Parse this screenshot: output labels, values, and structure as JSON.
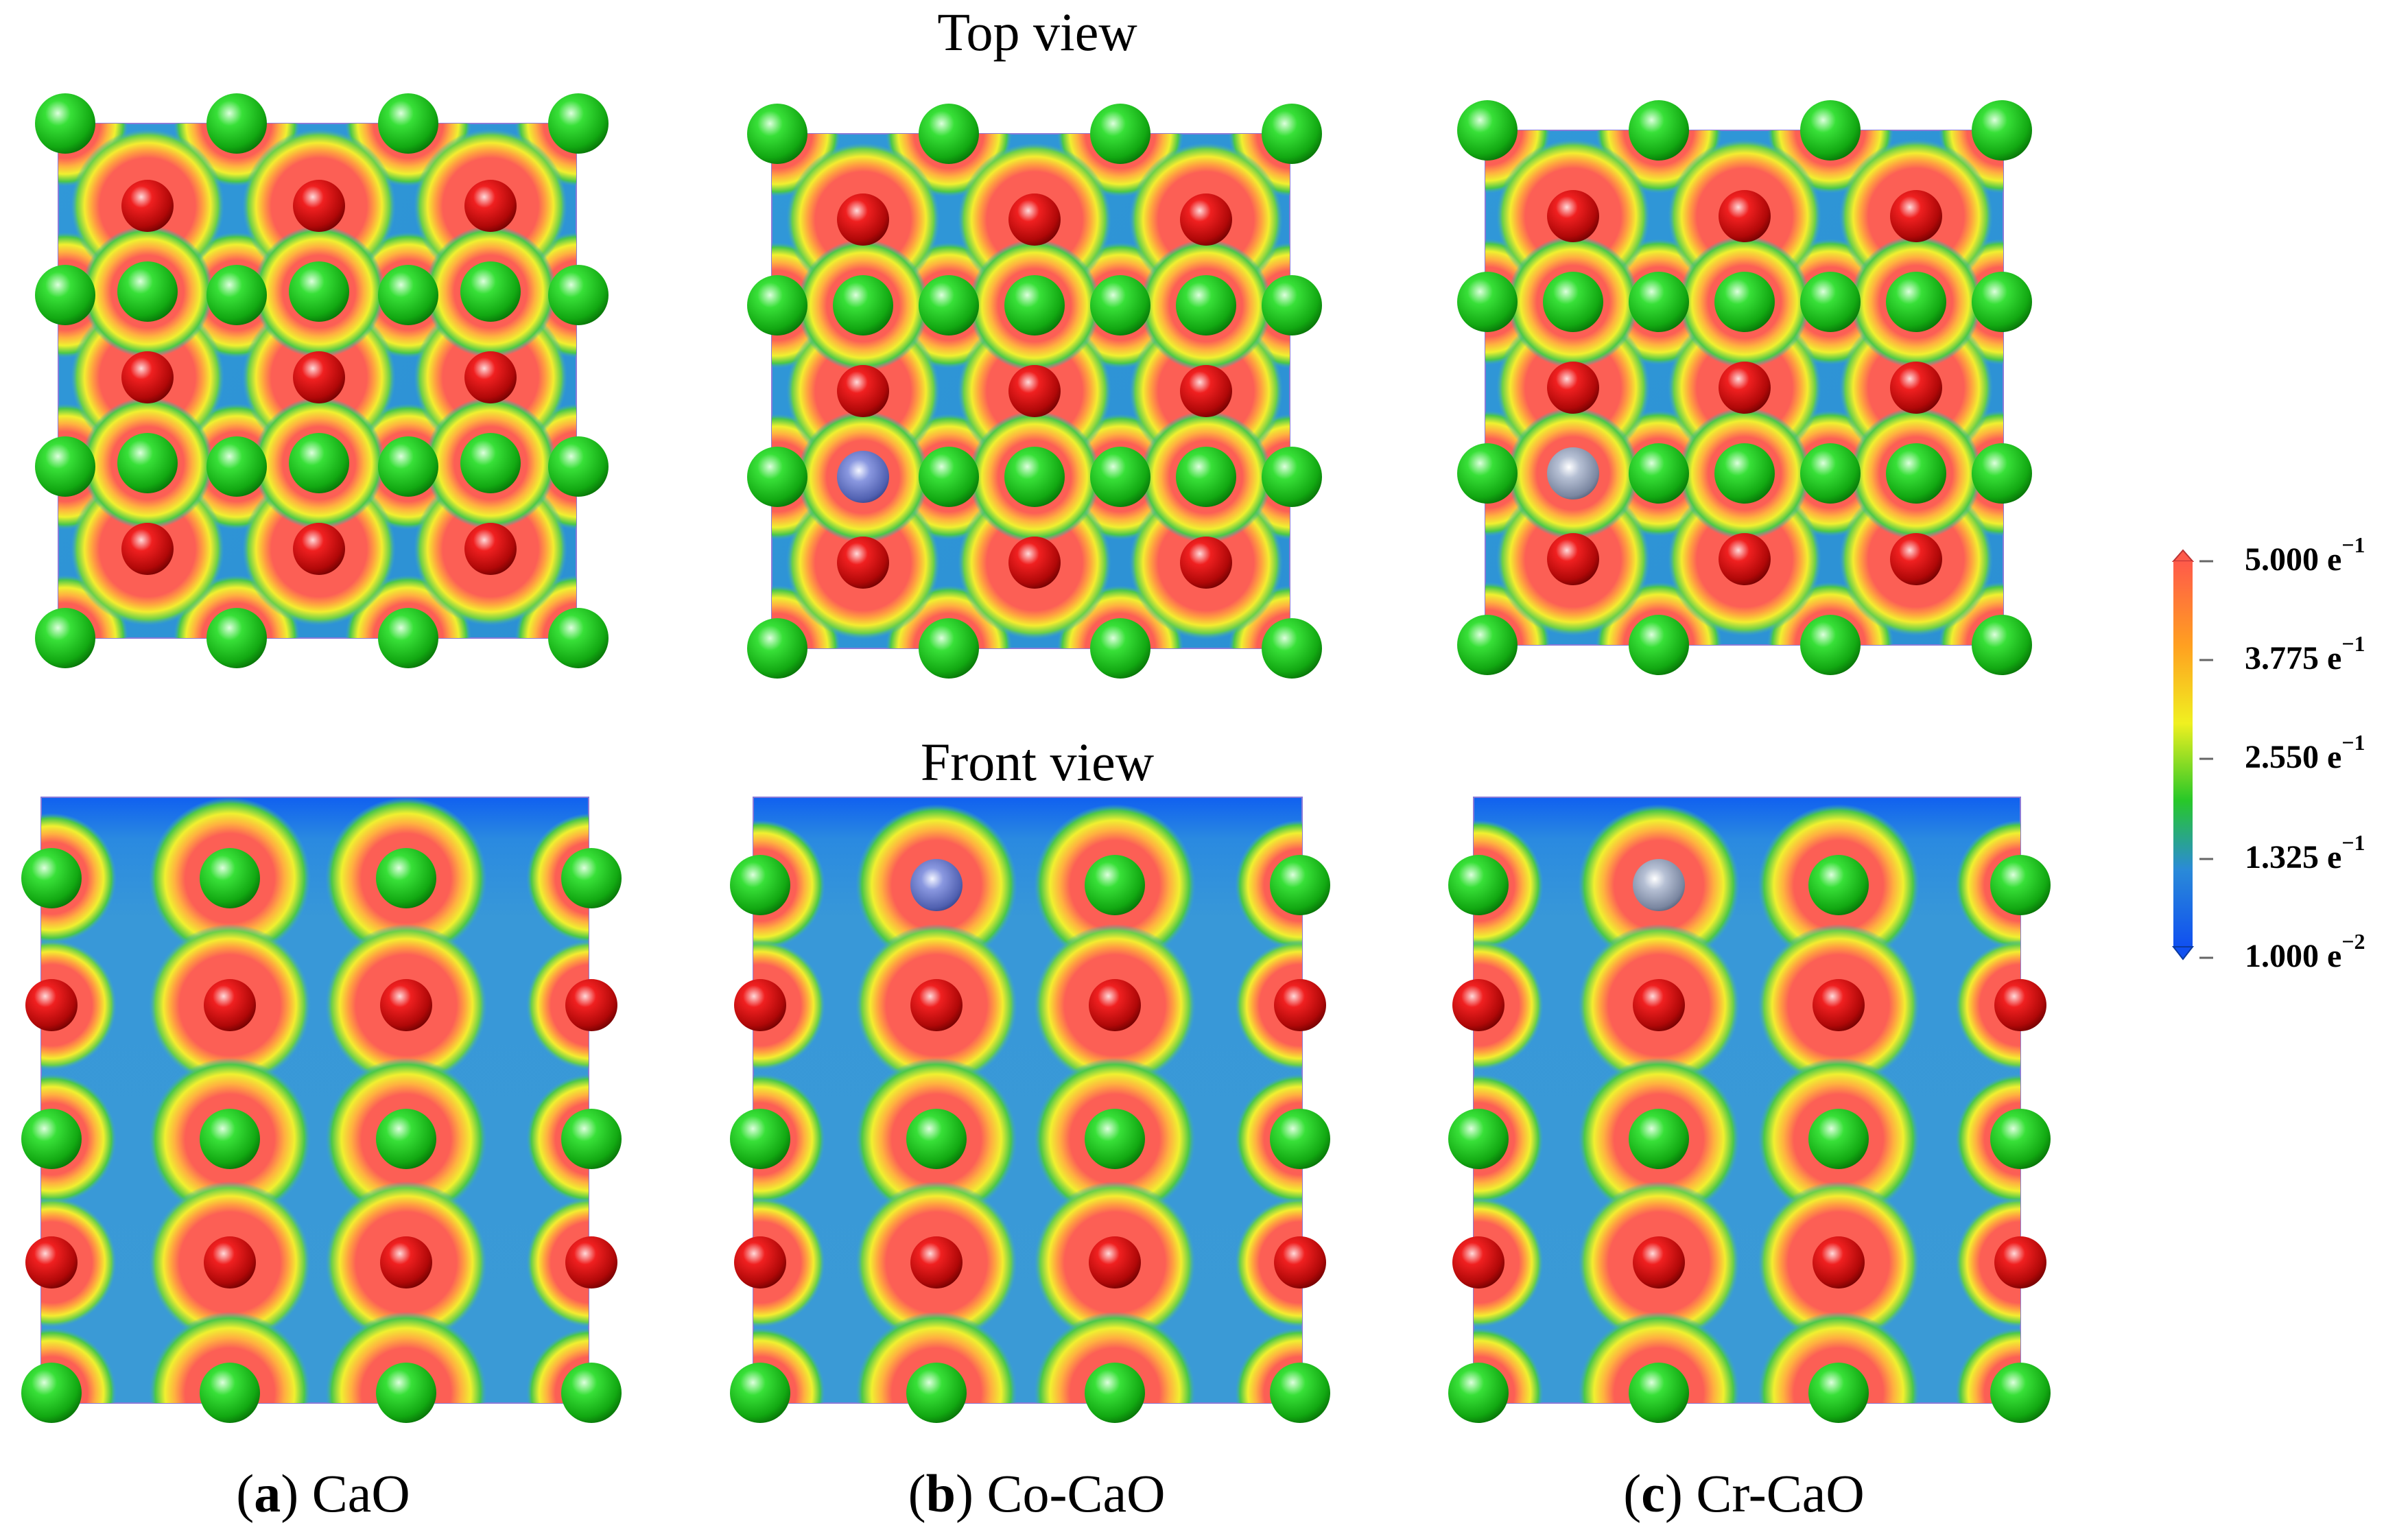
{
  "titles": {
    "top_view": "Top view",
    "front_view": "Front view"
  },
  "panels": [
    {
      "id": "a",
      "letter": "a",
      "material": "CaO",
      "dopant": null
    },
    {
      "id": "b",
      "letter": "b",
      "material": "Co-CaO",
      "dopant": "Co"
    },
    {
      "id": "c",
      "letter": "c",
      "material": "Cr-CaO",
      "dopant": "Cr"
    }
  ],
  "colorbar": {
    "ticks": [
      {
        "mantissa": "5.000 e",
        "exponent": "−1"
      },
      {
        "mantissa": "3.775 e",
        "exponent": "−1"
      },
      {
        "mantissa": "2.550 e",
        "exponent": "−1"
      },
      {
        "mantissa": "1.325 e",
        "exponent": "−1"
      },
      {
        "mantissa": "1.000 e",
        "exponent": "−2"
      }
    ],
    "colors": [
      "#ff5a4a",
      "#ffa020",
      "#f0f020",
      "#28c828",
      "#2a8ad8",
      "#1050f0"
    ]
  },
  "atom_colors": {
    "Ca": "#22cc22",
    "O": "#ee1111",
    "Co": "#7f8ed8",
    "Cr": "#a9b4c8"
  },
  "density_colors": {
    "high": "#fc5f55",
    "mid": "#ffd030",
    "low": "#3a9ed8",
    "vacuum": "#1070f0"
  }
}
